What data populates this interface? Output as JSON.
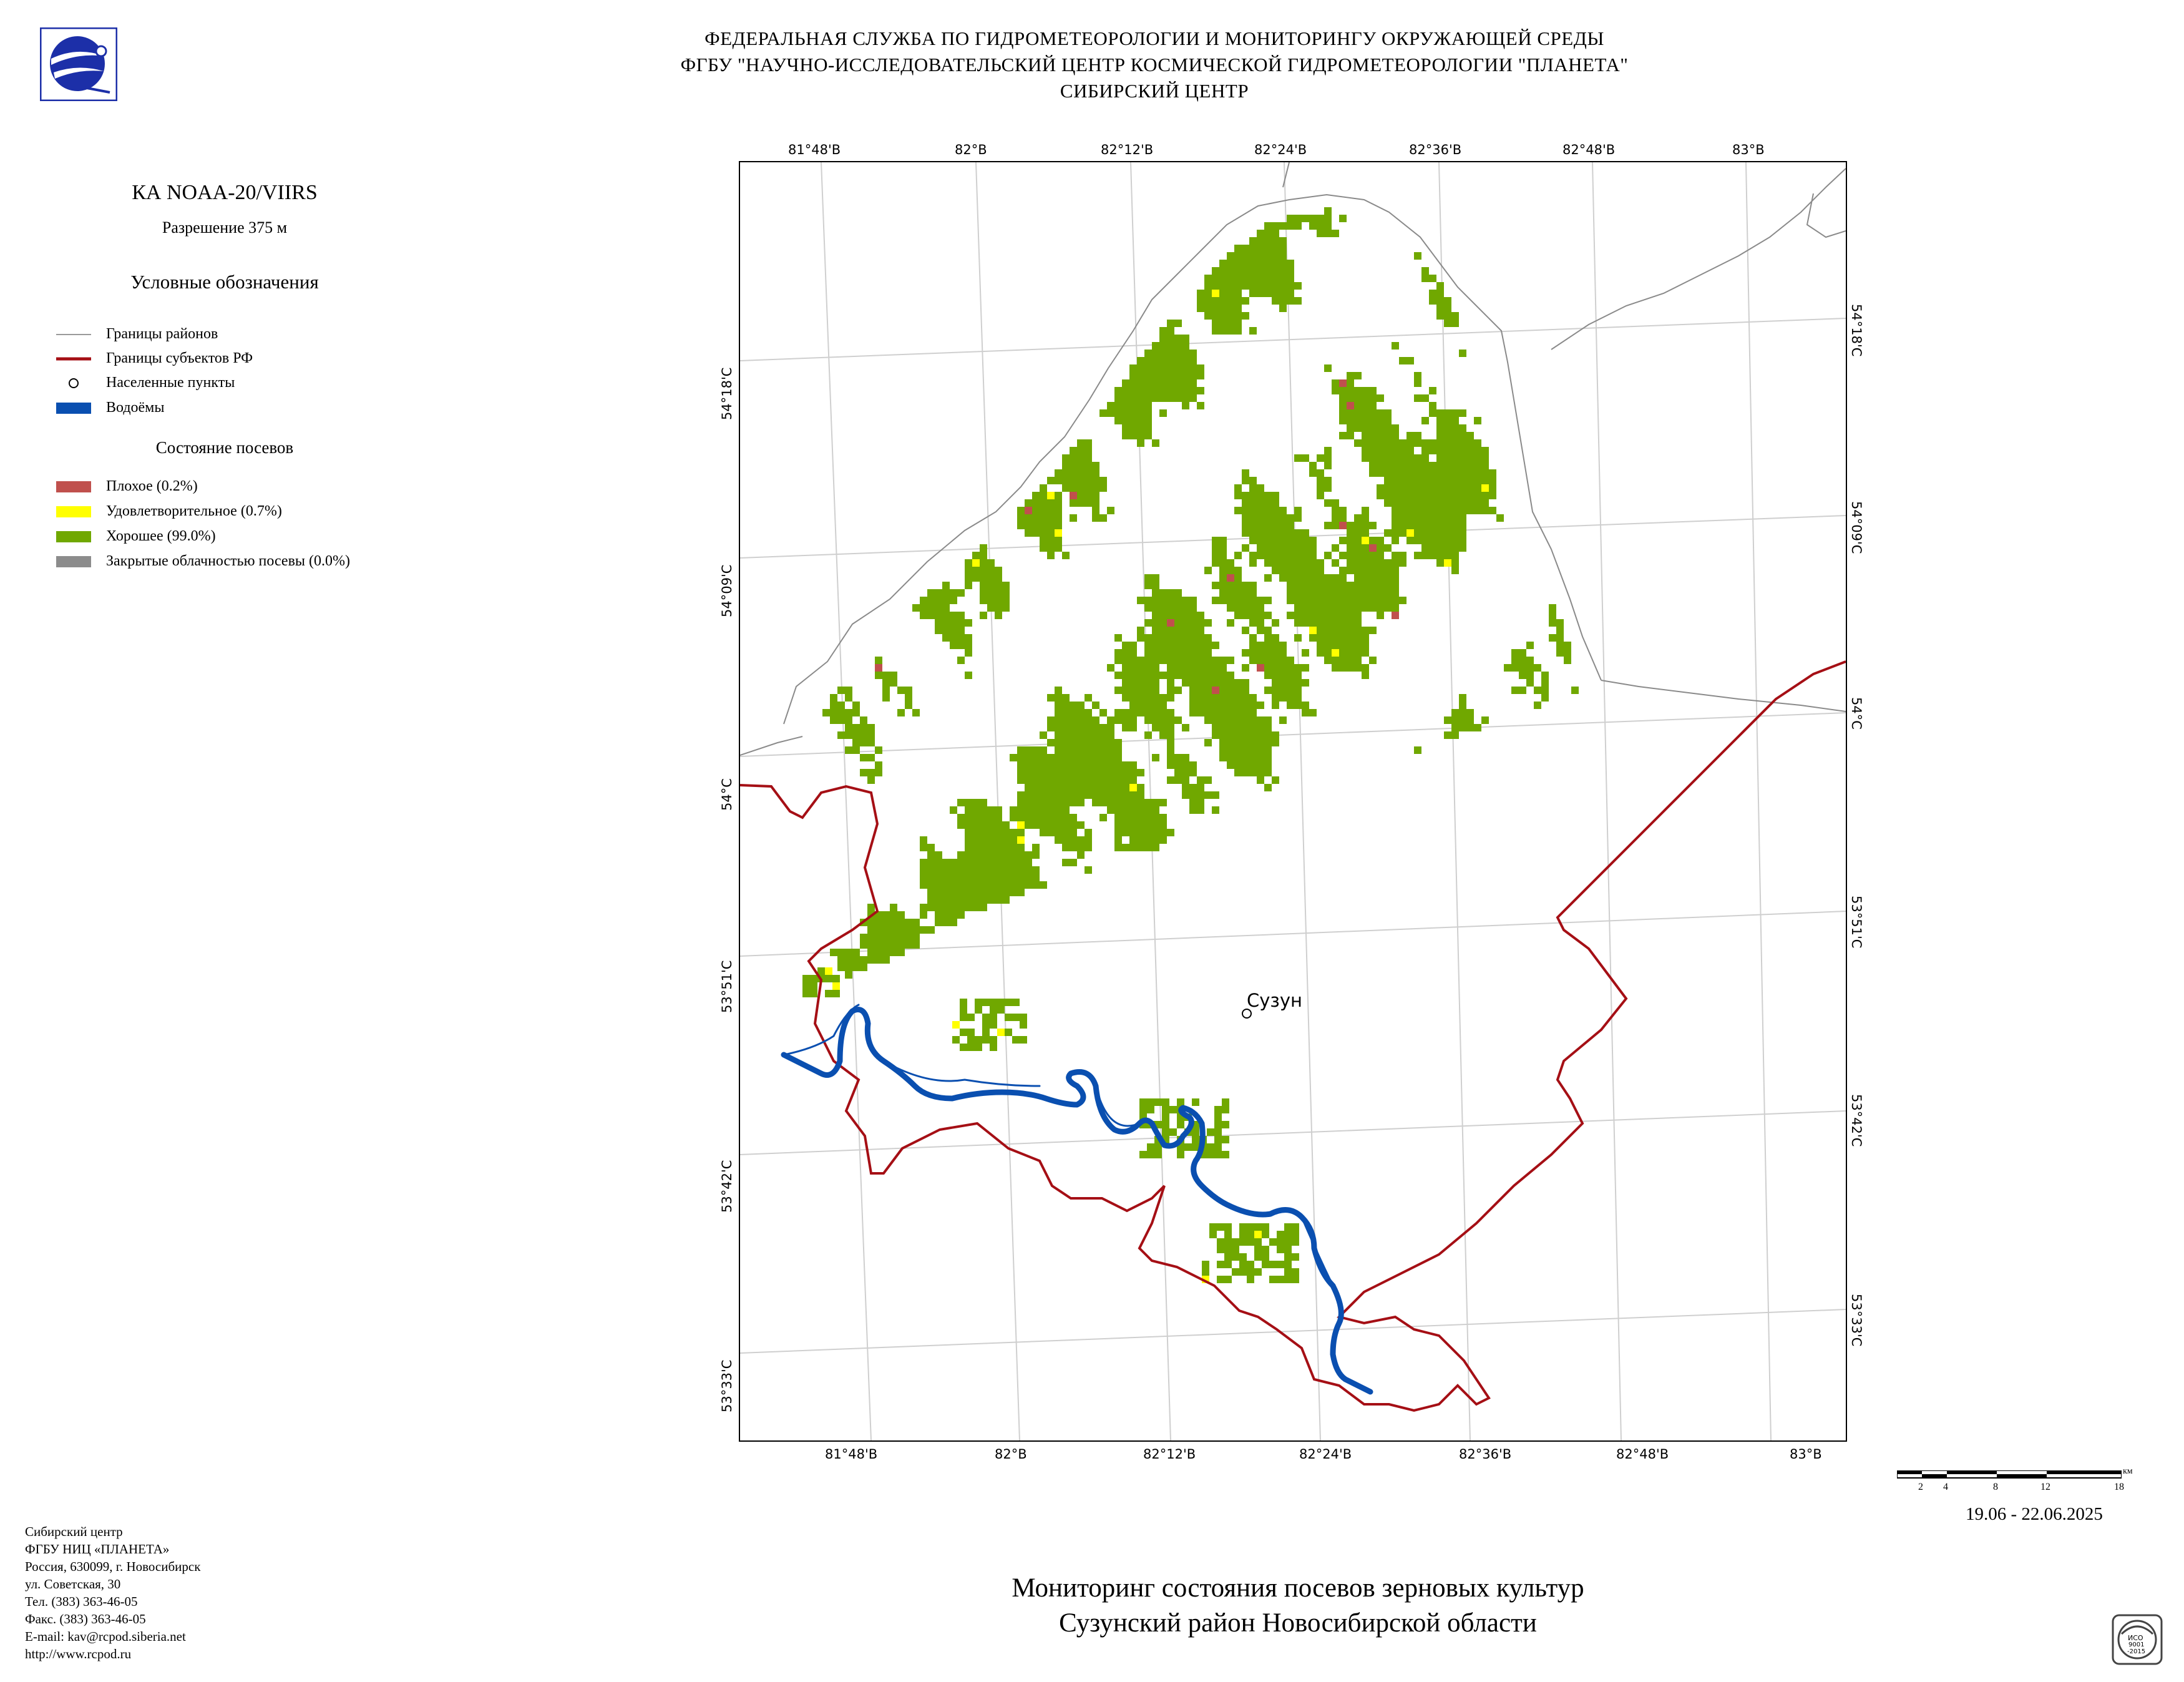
{
  "header": {
    "line1": "ФЕДЕРАЛЬНАЯ СЛУЖБА ПО ГИДРОМЕТЕОРОЛОГИИ И МОНИТОРИНГУ ОКРУЖАЮЩЕЙ СРЕДЫ",
    "line2": "ФГБУ \"НАУЧНО-ИССЛЕДОВАТЕЛЬСКИЙ ЦЕНТР КОСМИЧЕСКОЙ ГИДРОМЕТЕОРОЛОГИИ \"ПЛАНЕТА\"",
    "line3": "СИБИРСКИЙ ЦЕНТР"
  },
  "logo_icon": "planeta-globe-logo",
  "satellite": {
    "name": "КА NOAA-20/VIIRS",
    "resolution": "Разрешение 375 м"
  },
  "legend": {
    "title": "Условные обозначения",
    "items": [
      {
        "label": "Границы районов",
        "color": "#9a9a9a",
        "kind": "line"
      },
      {
        "label": "Границы субъектов РФ",
        "color": "#a50f15",
        "kind": "line"
      },
      {
        "label": "Населенные пункты",
        "color": "#000000",
        "kind": "circle"
      },
      {
        "label": "Водоёмы",
        "color": "#0a4fb0",
        "kind": "fill"
      }
    ],
    "crop_title": "Состояние посевов",
    "crop_items": [
      {
        "label": "Плохое (0.2%)",
        "color": "#c0504d"
      },
      {
        "label": "Удовлетворительное (0.7%)",
        "color": "#ffff00"
      },
      {
        "label": "Хорошее (99.0%)",
        "color": "#70a800"
      },
      {
        "label": "Закрытые облачностью посевы (0.0%)",
        "color": "#8c8c8c"
      }
    ]
  },
  "map": {
    "top_labels": [
      "81°48'В",
      "82°В",
      "82°12'В",
      "82°24'В",
      "82°36'В",
      "82°48'В",
      "83°В"
    ],
    "bottom_labels": [
      "81°48'В",
      "82°В",
      "82°12'В",
      "82°24'В",
      "82°36'В",
      "82°48'В",
      "83°В"
    ],
    "left_labels": [
      "54°18'С",
      "54°09'С",
      "54°С",
      "53°51'С",
      "53°42'С",
      "53°33'С"
    ],
    "right_labels": [
      "54°18'С",
      "54°09'С",
      "54°С",
      "53°51'С",
      "53°42'С",
      "53°33'С"
    ],
    "settlement": "Сузун",
    "colors": {
      "good": "#70a800",
      "satisfactory": "#ffff00",
      "poor": "#c0504d",
      "water": "#0a4fb0",
      "region_border": "#a50f15",
      "district_border": "#9a9a9a",
      "grid": "#cfcfcf"
    }
  },
  "scale_bar": {
    "ticks": [
      "2",
      "4",
      "8",
      "12",
      "18"
    ],
    "unit": "км"
  },
  "date_range": "19.06 - 22.06.2025",
  "contact": {
    "lines": [
      "Сибирский центр",
      "ФГБУ НИЦ «ПЛАНЕТА»",
      "Россия, 630099, г. Новосибирск",
      "ул. Советская, 30",
      "Тел. (383) 363-46-05",
      "Факс. (383) 363-46-05",
      "E-mail: kav@rcpod.siberia.net",
      "http://www.rcpod.ru"
    ]
  },
  "title": {
    "line1": "Мониторинг состояния посевов зерновых культур",
    "line2": "Сузунский район Новосибирской области"
  },
  "iso_badge": {
    "text1": "ИСО",
    "text2": "9001",
    "text3": "-2015"
  }
}
